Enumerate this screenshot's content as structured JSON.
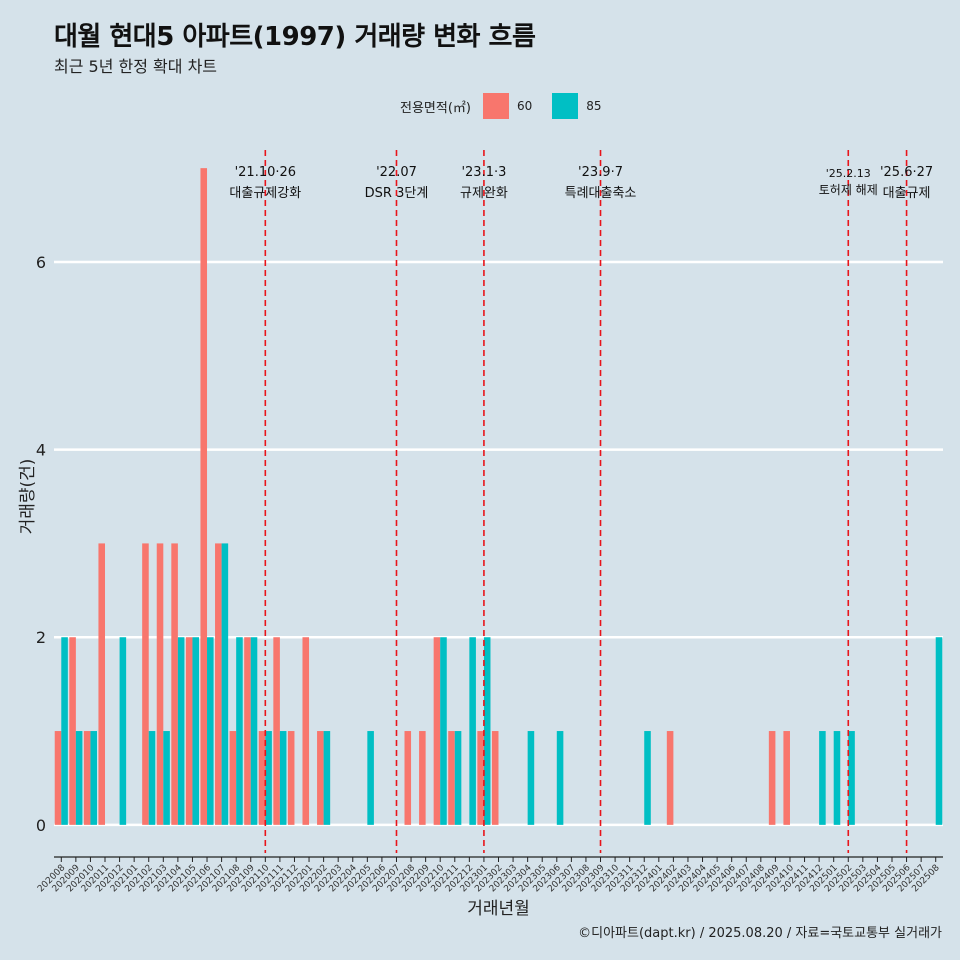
{
  "title": "대월 현대5 아파트(1997) 거래량 변화 흐름",
  "subtitle": "최근 5년 한정 확대 차트",
  "legend": {
    "title": "전용면적(㎡)",
    "items": [
      {
        "label": "60",
        "color": "#F8766D"
      },
      {
        "label": "85",
        "color": "#00BFC4"
      }
    ]
  },
  "caption": "©디아파트(dapt.kr) / 2025.08.20 / 자료=국토교통부 실거래가",
  "chart_data": {
    "type": "bar",
    "xlabel": "거래년월",
    "ylabel": "거래량(건)",
    "ylim": [
      -0.3,
      7.3
    ],
    "yticks": [
      0,
      2,
      4,
      6
    ],
    "categories": [
      "202008",
      "202009",
      "202010",
      "202011",
      "202012",
      "202101",
      "202102",
      "202103",
      "202104",
      "202105",
      "202106",
      "202107",
      "202108",
      "202109",
      "202110",
      "202111",
      "202112",
      "202201",
      "202202",
      "202203",
      "202204",
      "202205",
      "202206",
      "202207",
      "202208",
      "202209",
      "202210",
      "202211",
      "202212",
      "202301",
      "202302",
      "202303",
      "202304",
      "202305",
      "202306",
      "202307",
      "202308",
      "202309",
      "202310",
      "202311",
      "202312",
      "202401",
      "202402",
      "202403",
      "202404",
      "202405",
      "202406",
      "202407",
      "202408",
      "202409",
      "202410",
      "202411",
      "202412",
      "202501",
      "202502",
      "202503",
      "202504",
      "202505",
      "202506",
      "202507",
      "202508"
    ],
    "series": [
      {
        "name": "60",
        "color": "#F8766D",
        "values": [
          1,
          2,
          1,
          3,
          0,
          0,
          3,
          3,
          3,
          2,
          7,
          3,
          1,
          2,
          1,
          2,
          1,
          2,
          1,
          0,
          0,
          0,
          0,
          0,
          1,
          1,
          2,
          1,
          0,
          1,
          1,
          0,
          0,
          0,
          0,
          0,
          0,
          0,
          0,
          0,
          0,
          0,
          1,
          0,
          0,
          0,
          0,
          0,
          0,
          1,
          1,
          0,
          0,
          0,
          0,
          0,
          0,
          0,
          0,
          0,
          0
        ]
      },
      {
        "name": "85",
        "color": "#00BFC4",
        "values": [
          2,
          1,
          1,
          0,
          2,
          0,
          1,
          1,
          2,
          2,
          2,
          3,
          2,
          2,
          1,
          1,
          0,
          0,
          1,
          0,
          0,
          1,
          0,
          0,
          0,
          0,
          2,
          1,
          2,
          2,
          0,
          0,
          1,
          0,
          1,
          0,
          0,
          0,
          0,
          0,
          1,
          0,
          0,
          0,
          0,
          0,
          0,
          0,
          0,
          0,
          0,
          0,
          1,
          1,
          1,
          0,
          0,
          0,
          0,
          0,
          2
        ]
      }
    ],
    "events": [
      {
        "date": "'21.10·26",
        "label": "대출규제강화",
        "month": "202110"
      },
      {
        "date": "'22.07",
        "label": "DSR 3단계",
        "month": "202207"
      },
      {
        "date": "'23.1·3",
        "label": "규제완화",
        "month": "202301"
      },
      {
        "date": "'23.9·7",
        "label": "특례대출축소",
        "month": "202309"
      },
      {
        "date": "'25.2.13",
        "label": "토허제 해제",
        "month": "202502"
      },
      {
        "date": "'25.6·27",
        "label": "대출규제",
        "month": "202506"
      }
    ],
    "grid": true,
    "legend_position": "top"
  }
}
